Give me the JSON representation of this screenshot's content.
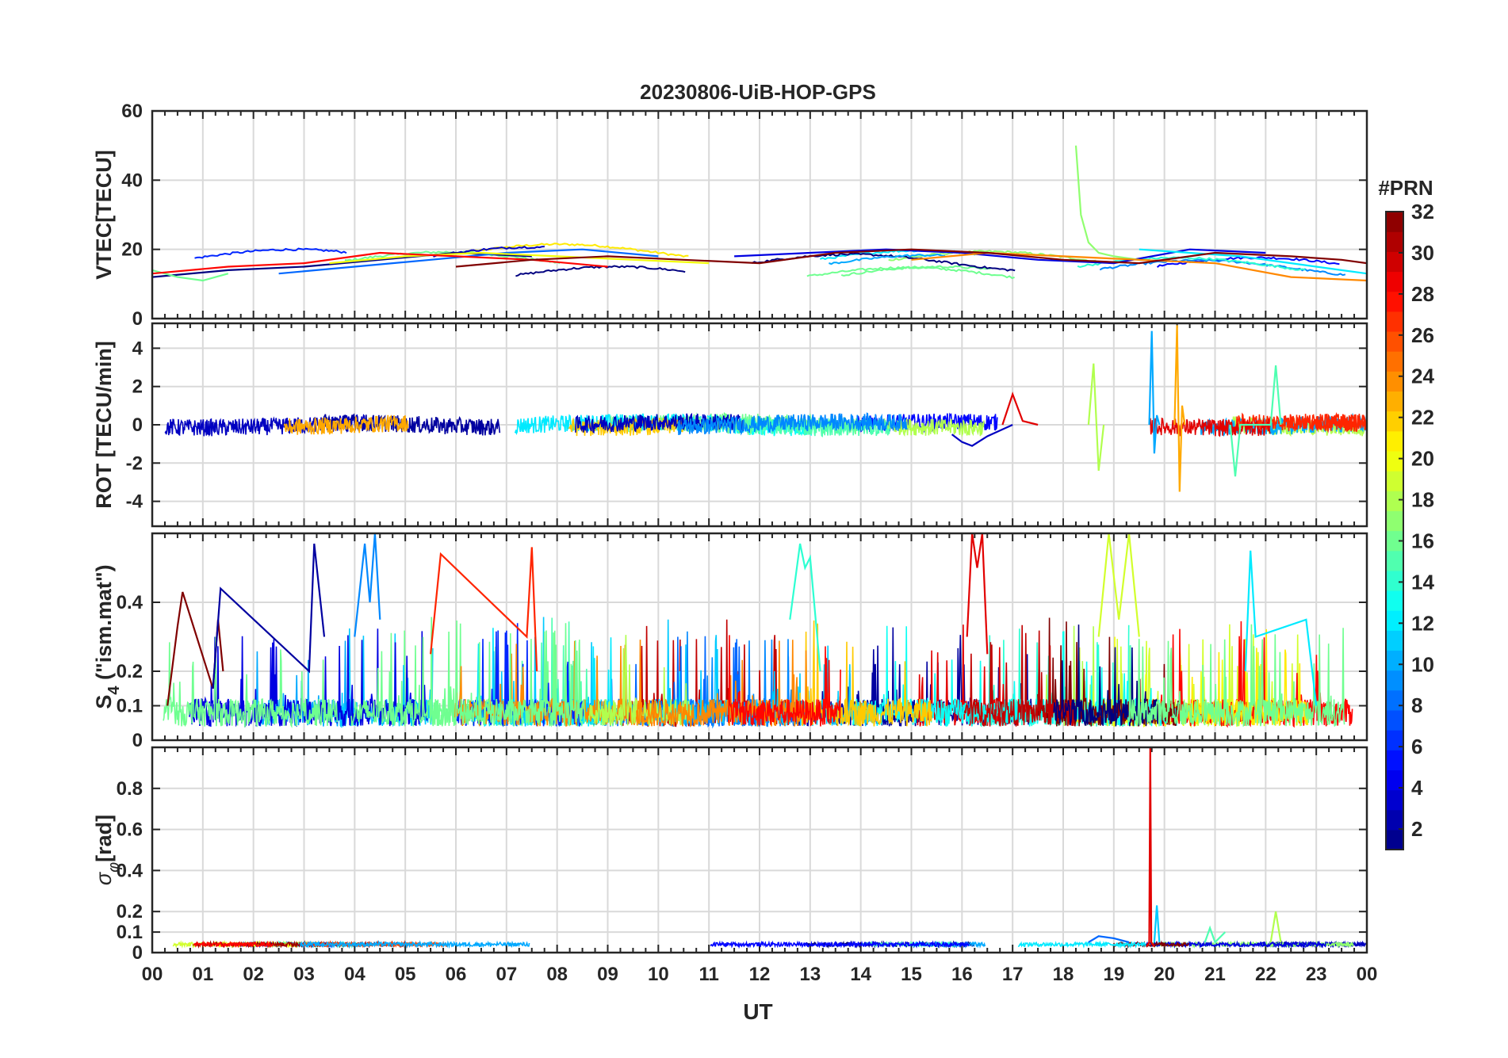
{
  "figure": {
    "title": "20230806-UiB-HOP-GPS",
    "xlabel": "UT",
    "x_tick_labels": [
      "00",
      "01",
      "02",
      "03",
      "04",
      "05",
      "06",
      "07",
      "08",
      "09",
      "10",
      "11",
      "12",
      "13",
      "14",
      "15",
      "16",
      "17",
      "18",
      "19",
      "20",
      "21",
      "22",
      "23",
      "00"
    ],
    "colorbar": {
      "label": "#PRN",
      "range": [
        1,
        32
      ],
      "tick_labels": [
        "2",
        "4",
        "6",
        "8",
        "10",
        "12",
        "14",
        "16",
        "18",
        "20",
        "22",
        "24",
        "26",
        "28",
        "30",
        "32"
      ],
      "tick_values": [
        2,
        4,
        6,
        8,
        10,
        12,
        14,
        16,
        18,
        20,
        22,
        24,
        26,
        28,
        30,
        32
      ],
      "colormap": "jet",
      "levels": 32
    }
  },
  "chart_data": [
    {
      "type": "line",
      "panel": "vtec",
      "ylabel": "VTEC[TECU]",
      "ylim": [
        0,
        60
      ],
      "y_ticks": [
        0,
        20,
        40,
        60
      ],
      "y_tick_labels": [
        "0",
        "20",
        "40",
        "60"
      ],
      "xlim": [
        0,
        24
      ],
      "grid": true,
      "series": [
        {
          "prn": 1,
          "x": [
            0,
            1.5,
            3,
            4.5,
            6,
            7.5
          ],
          "y": [
            12,
            14,
            15,
            17,
            19,
            18
          ]
        },
        {
          "prn": 4,
          "x": [
            11.5,
            13,
            14.5,
            16,
            17.5,
            19,
            20.5,
            22
          ],
          "y": [
            18,
            19,
            20,
            19,
            17,
            16,
            20,
            19
          ]
        },
        {
          "prn": 8,
          "x": [
            2.5,
            4,
            5.5,
            7,
            8.5,
            10
          ],
          "y": [
            13,
            15,
            17,
            19,
            20,
            18
          ]
        },
        {
          "prn": 12,
          "x": [
            19.5,
            20.5,
            21.5,
            22.5,
            23.5,
            24
          ],
          "y": [
            20,
            19,
            18,
            16,
            14,
            13
          ]
        },
        {
          "prn": 16,
          "x": [
            0,
            0.5,
            1,
            1.5
          ],
          "y": [
            14,
            12,
            11,
            13
          ]
        },
        {
          "prn": 17,
          "x": [
            18.25,
            18.35,
            18.5,
            18.7,
            19,
            19.5
          ],
          "y": [
            50,
            30,
            22,
            19,
            18,
            17
          ]
        },
        {
          "prn": 20,
          "x": [
            3.5,
            5,
            6.5,
            8,
            9.5,
            11
          ],
          "y": [
            16,
            18,
            19,
            18,
            17,
            16
          ]
        },
        {
          "prn": 24,
          "x": [
            15,
            16.5,
            18,
            19.5,
            21,
            22.5,
            24
          ],
          "y": [
            17,
            19,
            18,
            17,
            16,
            12,
            11
          ]
        },
        {
          "prn": 28,
          "x": [
            0,
            1.5,
            3,
            4.5,
            6,
            7.5,
            9
          ],
          "y": [
            13,
            15,
            16,
            19,
            18,
            17,
            15
          ]
        },
        {
          "prn": 32,
          "x": [
            6,
            7.5,
            9,
            10.5,
            12,
            13.5,
            15,
            16.5,
            18,
            19.5,
            21,
            22.5,
            23.5,
            24
          ],
          "y": [
            15,
            17,
            18,
            17,
            16,
            19,
            20,
            19,
            17,
            16,
            19,
            18,
            17,
            16
          ]
        }
      ]
    },
    {
      "type": "line",
      "panel": "rot",
      "ylabel": "ROT [TECU/min]",
      "ylim": [
        -5.3,
        5.3
      ],
      "y_ticks": [
        -4,
        -2,
        0,
        2,
        4
      ],
      "y_tick_labels": [
        "-4",
        "-2",
        "0",
        "2",
        "4"
      ],
      "xlim": [
        0,
        24
      ],
      "grid": true,
      "series": [
        {
          "prn": 3,
          "x": [
            15.8,
            16,
            16.2,
            16.5,
            17
          ],
          "y": [
            -0.5,
            -0.9,
            -1.1,
            -0.6,
            0
          ]
        },
        {
          "prn": 10,
          "x": [
            19.7,
            19.75,
            19.8,
            19.85,
            19.9
          ],
          "y": [
            0,
            4.9,
            -1.5,
            0.5,
            0
          ]
        },
        {
          "prn": 23,
          "x": [
            20.2,
            20.25,
            20.3,
            20.35,
            20.4
          ],
          "y": [
            0,
            5.2,
            -3.5,
            1,
            0
          ]
        },
        {
          "prn": 29,
          "x": [
            16.8,
            17,
            17.2,
            17.5
          ],
          "y": [
            0,
            1.6,
            0.2,
            0
          ]
        },
        {
          "prn": 18,
          "x": [
            18.5,
            18.6,
            18.7,
            18.8
          ],
          "y": [
            0,
            3.2,
            -2.4,
            0
          ]
        },
        {
          "prn": 15,
          "x": [
            21.3,
            21.4,
            21.5,
            22.1,
            22.2,
            22.3
          ],
          "y": [
            0,
            -2.7,
            0,
            0,
            3.1,
            0
          ]
        }
      ]
    },
    {
      "type": "line",
      "panel": "s4",
      "ylabel": "S4 (\"ism.mat\")",
      "ylabel_main": "S",
      "ylabel_sub": "4",
      "ylabel_rest": " (\"ism.mat\")",
      "ylim": [
        0,
        0.6
      ],
      "y_ticks": [
        0,
        0.1,
        0.2,
        0.4
      ],
      "y_tick_labels": [
        "0",
        "0.1",
        "0.2",
        "0.4"
      ],
      "xlim": [
        0,
        24
      ],
      "grid": true,
      "series": [
        {
          "prn": 32,
          "x": [
            0.3,
            0.5,
            0.6,
            1.2,
            1.3,
            1.4
          ],
          "y": [
            0.1,
            0.33,
            0.43,
            0.15,
            0.35,
            0.2
          ]
        },
        {
          "prn": 2,
          "x": [
            1.2,
            1.35,
            3.1,
            3.2,
            3.4
          ],
          "y": [
            0.15,
            0.44,
            0.2,
            0.57,
            0.3
          ]
        },
        {
          "prn": 9,
          "x": [
            4,
            4.2,
            4.3,
            4.4,
            4.5
          ],
          "y": [
            0.3,
            0.57,
            0.4,
            0.6,
            0.35
          ]
        },
        {
          "prn": 27,
          "x": [
            5.5,
            5.7,
            7.4,
            7.5,
            7.6
          ],
          "y": [
            0.25,
            0.54,
            0.3,
            0.56,
            0.2
          ]
        },
        {
          "prn": 14,
          "x": [
            12.6,
            12.8,
            12.9,
            13,
            13.2
          ],
          "y": [
            0.35,
            0.57,
            0.5,
            0.53,
            0.2
          ]
        },
        {
          "prn": 29,
          "x": [
            16.1,
            16.2,
            16.3,
            16.4,
            16.5
          ],
          "y": [
            0.3,
            0.6,
            0.5,
            0.6,
            0.25
          ]
        },
        {
          "prn": 19,
          "x": [
            18.7,
            18.9,
            19.1,
            19.3,
            19.5
          ],
          "y": [
            0.3,
            0.6,
            0.35,
            0.6,
            0.3
          ]
        },
        {
          "prn": 12,
          "x": [
            21.6,
            21.7,
            21.8,
            22.8,
            23
          ],
          "y": [
            0.2,
            0.55,
            0.3,
            0.35,
            0.1
          ]
        }
      ]
    },
    {
      "type": "line",
      "panel": "sigma_phi",
      "ylabel": "σφ[rad]",
      "ylabel_main": "σ",
      "ylabel_sub": "φ",
      "ylabel_rest": "[rad]",
      "ylim": [
        0,
        1
      ],
      "y_ticks": [
        0,
        0.1,
        0.2,
        0.4,
        0.6,
        0.8
      ],
      "y_tick_labels": [
        "0",
        "0.1",
        "0.2",
        "0.4",
        "0.6",
        "0.8"
      ],
      "xlim": [
        0,
        24
      ],
      "grid": true,
      "series": [
        {
          "prn": 29,
          "x": [
            19.65,
            19.7,
            19.72,
            19.74,
            19.8
          ],
          "y": [
            0.03,
            0.05,
            1.0,
            0.05,
            0.03
          ]
        },
        {
          "prn": 11,
          "x": [
            19.8,
            19.85,
            19.9
          ],
          "y": [
            0.05,
            0.23,
            0.05
          ]
        },
        {
          "prn": 18,
          "x": [
            22.1,
            22.2,
            22.3
          ],
          "y": [
            0.05,
            0.2,
            0.05
          ]
        },
        {
          "prn": 15,
          "x": [
            20.8,
            20.9,
            21,
            21.2
          ],
          "y": [
            0.05,
            0.12,
            0.05,
            0.1
          ]
        },
        {
          "prn": 8,
          "x": [
            18.5,
            18.7,
            19,
            19.3
          ],
          "y": [
            0.05,
            0.08,
            0.07,
            0.05
          ]
        }
      ]
    }
  ]
}
